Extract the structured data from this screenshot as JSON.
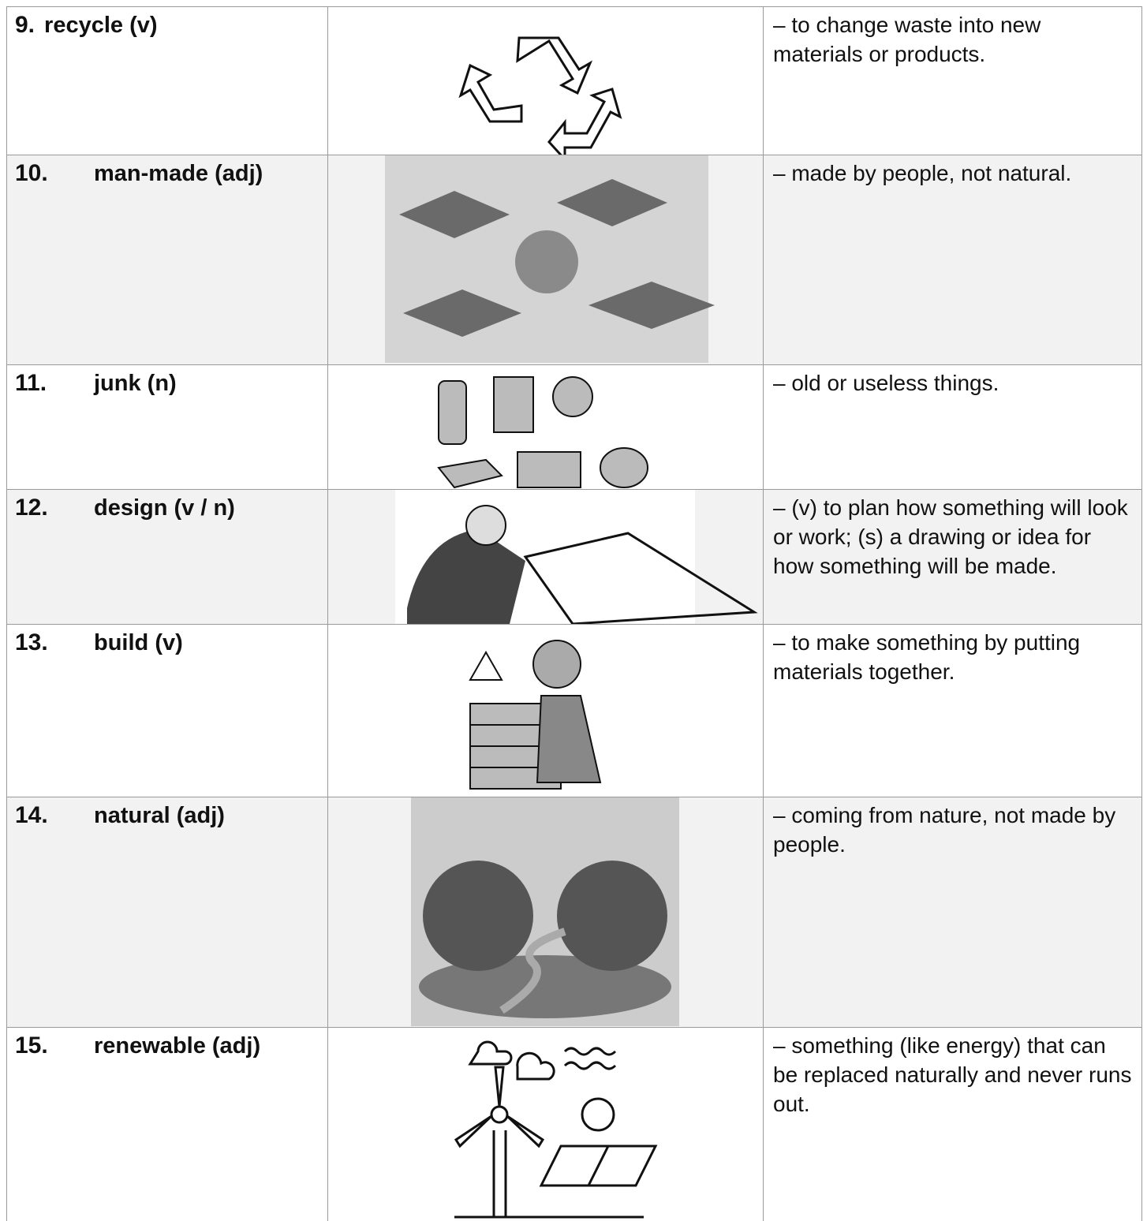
{
  "table": {
    "rows": [
      {
        "number": "9.",
        "term": "recycle (v)",
        "definition": "– to change waste into new materials or products."
      },
      {
        "number": "10.",
        "term": "man-made (adj)",
        "definition": "– made by people, not natural."
      },
      {
        "number": "11.",
        "term": "junk (n)",
        "definition": "– old or useless things."
      },
      {
        "number": "12.",
        "term": "design (v / n)",
        "definition": "– (v) to plan how something will look or work; (s) a drawing or idea for how something will be made."
      },
      {
        "number": "13.",
        "term": "build (v)",
        "definition": "– to make something by putting materials together."
      },
      {
        "number": "14.",
        "term": "natural (adj)",
        "definition": "– coming from nature, not made by people."
      },
      {
        "number": "15.",
        "term": "renewable (adj)",
        "definition": "– something (like energy) that can be replaced naturally and never runs out."
      }
    ]
  }
}
